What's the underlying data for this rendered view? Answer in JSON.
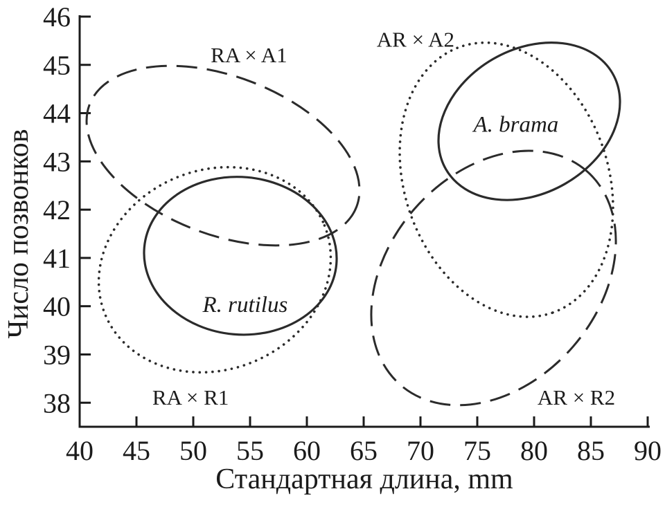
{
  "figure": {
    "background": "#ffffff",
    "ink_color": "#2b2b2b",
    "text_color": "#1b1b1b"
  },
  "chart_data": {
    "type": "scatter",
    "mark": "confidence-ellipses",
    "title": "",
    "xlabel": "Стандартная длина, mm",
    "ylabel": "Число позвонков",
    "xlim": [
      40,
      90
    ],
    "ylim": [
      38,
      46
    ],
    "xticks": [
      40,
      45,
      50,
      55,
      60,
      65,
      70,
      75,
      80,
      85,
      90
    ],
    "yticks": [
      38,
      39,
      40,
      41,
      42,
      43,
      44,
      45,
      46
    ],
    "grid": false,
    "legend_position": "inline-labels",
    "ellipses": [
      {
        "label": "RA × A1",
        "line_style": "long-dash",
        "center": {
          "x": 52.62,
          "y": 43.12
        },
        "x_range_mm": [
          40.61,
          64.63
        ],
        "y_range_vertebrae": [
          41.26,
          44.98
        ],
        "rotation_deg": 21,
        "label_pos": {
          "x": 54.9,
          "y": 45.21
        },
        "label_italic": false
      },
      {
        "label": "RA × R1",
        "line_style": "dotted",
        "center": {
          "x": 51.89,
          "y": 40.76
        },
        "x_range_mm": [
          41.68,
          62.1
        ],
        "y_range_vertebrae": [
          38.63,
          42.88
        ],
        "rotation_deg": -22,
        "label_pos": {
          "x": 49.76,
          "y": 38.12
        },
        "label_italic": false
      },
      {
        "label": "R. rutilus",
        "line_style": "solid",
        "center": {
          "x": 54.15,
          "y": 41.05
        },
        "x_range_mm": [
          45.67,
          62.62
        ],
        "y_range_vertebrae": [
          39.41,
          42.68
        ],
        "rotation_deg": 5,
        "label_pos": {
          "x": 54.57,
          "y": 40.05
        },
        "label_italic": true
      },
      {
        "label": "AR × A2",
        "line_style": "dotted",
        "center": {
          "x": 77.56,
          "y": 42.62
        },
        "x_range_mm": [
          68.17,
          86.95
        ],
        "y_range_vertebrae": [
          39.78,
          45.46
        ],
        "rotation_deg": 71,
        "label_pos": {
          "x": 69.57,
          "y": 45.53
        },
        "label_italic": false
      },
      {
        "label": "A. brama",
        "line_style": "solid",
        "center": {
          "x": 79.58,
          "y": 43.83
        },
        "x_range_mm": [
          71.59,
          87.56
        ],
        "y_range_vertebrae": [
          42.2,
          45.46
        ],
        "rotation_deg": -30,
        "label_pos": {
          "x": 78.41,
          "y": 43.78
        },
        "label_italic": true
      },
      {
        "label": "AR × R2",
        "line_style": "long-dash",
        "center": {
          "x": 76.44,
          "y": 40.59
        },
        "x_range_mm": [
          65.67,
          87.2
        ],
        "y_range_vertebrae": [
          37.95,
          43.22
        ],
        "rotation_deg": -49,
        "label_pos": {
          "x": 83.72,
          "y": 38.12
        },
        "label_italic": false
      }
    ]
  }
}
